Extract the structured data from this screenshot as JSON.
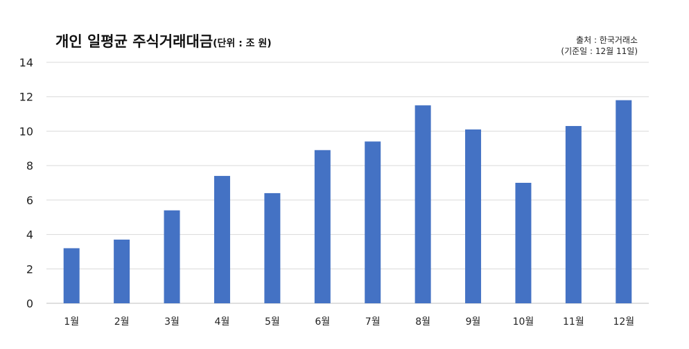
{
  "chart_data": {
    "type": "bar",
    "title": "개인 일평균 주식거래대금",
    "unit_label": "(단위 : 조 원)",
    "source": "출처 : 한국거래소",
    "reference_date": "(기준일 : 12월 11일)",
    "categories": [
      "1월",
      "2월",
      "3월",
      "4월",
      "5월",
      "6월",
      "7월",
      "8월",
      "9월",
      "10월",
      "11월",
      "12월"
    ],
    "values": [
      3.2,
      3.7,
      5.4,
      7.4,
      6.4,
      8.9,
      9.4,
      11.5,
      10.1,
      7.0,
      10.3,
      11.8
    ],
    "y_ticks": [
      "0",
      "2",
      "4",
      "6",
      "8",
      "10",
      "12",
      "14"
    ],
    "ylim": [
      0,
      14
    ],
    "grid": true,
    "legend": "none",
    "colors": {
      "bar": "#4472C4",
      "grid": "#D9D9D9",
      "axis": "#BFBFBF"
    }
  }
}
